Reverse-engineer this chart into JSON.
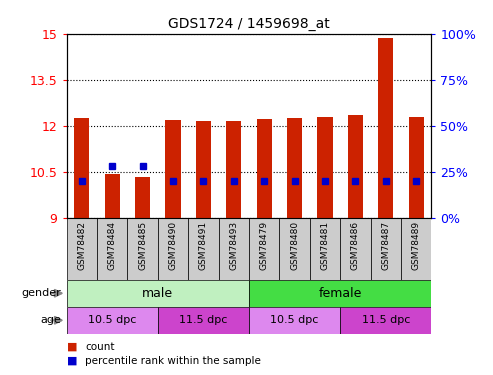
{
  "title": "GDS1724 / 1459698_at",
  "samples": [
    "GSM78482",
    "GSM78484",
    "GSM78485",
    "GSM78490",
    "GSM78491",
    "GSM78493",
    "GSM78479",
    "GSM78480",
    "GSM78481",
    "GSM78486",
    "GSM78487",
    "GSM78489"
  ],
  "count_values": [
    12.25,
    10.42,
    10.32,
    12.2,
    12.15,
    12.15,
    12.22,
    12.26,
    12.3,
    12.35,
    14.85,
    12.3
  ],
  "percentile_values": [
    20,
    28,
    28,
    20,
    20,
    20,
    20,
    20,
    20,
    20,
    20,
    20
  ],
  "ylim_left": [
    9,
    15
  ],
  "ylim_right": [
    0,
    100
  ],
  "yticks_left": [
    9,
    10.5,
    12,
    13.5,
    15
  ],
  "yticks_right": [
    0,
    25,
    50,
    75,
    100
  ],
  "bar_color": "#cc2200",
  "dot_color": "#0000cc",
  "bg_plot": "#ffffff",
  "gender_male_color": "#c0f0c0",
  "gender_female_color": "#44dd44",
  "age_colors": [
    "#dd88ee",
    "#cc44cc",
    "#dd88ee",
    "#cc44cc"
  ],
  "age_labels": [
    "10.5 dpc",
    "11.5 dpc",
    "10.5 dpc",
    "11.5 dpc"
  ],
  "xtick_bg": "#cccccc",
  "legend_count_label": "count",
  "legend_pct_label": "percentile rank within the sample",
  "n_male": 6,
  "n_female": 6,
  "n_age_10_5_male": 3,
  "n_age_11_5_male": 3,
  "n_age_10_5_female": 3,
  "n_age_11_5_female": 3
}
